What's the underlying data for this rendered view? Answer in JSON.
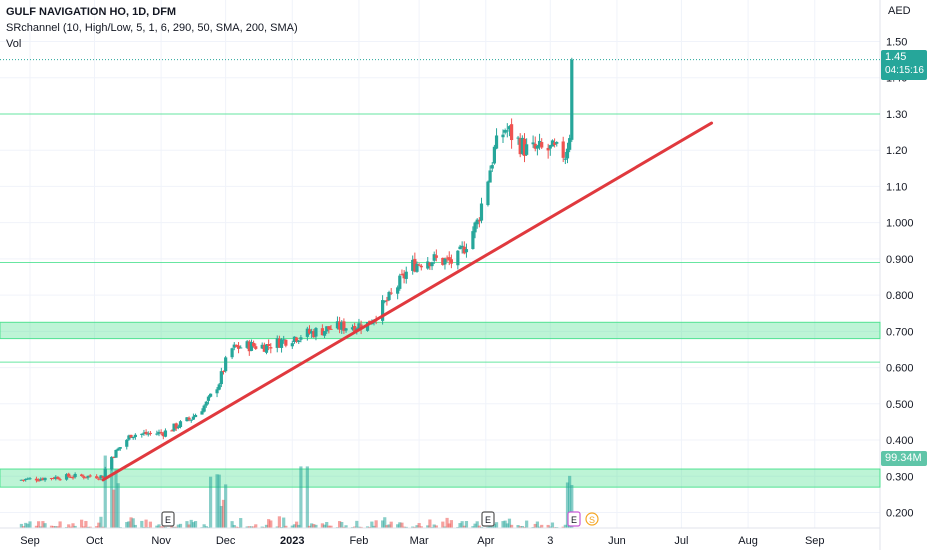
{
  "header": {
    "symbol_line": "GULF NAVIGATION HO, 1D, DFM",
    "indicator_line": "SRchannel (10, High/Low, 5, 1, 6, 290, 50, SMA, 200, SMA)",
    "volume_line": "Vol"
  },
  "price_axis": {
    "currency": "AED",
    "ticks": [
      "1.50",
      "1.40",
      "1.30",
      "1.20",
      "1.10",
      "1.000",
      "0.900",
      "0.800",
      "0.700",
      "0.600",
      "0.500",
      "0.400",
      "0.300",
      "0.200"
    ],
    "last_price": "1.45",
    "countdown": "04:15:16",
    "volume_badge": "99.34M"
  },
  "time_axis": {
    "labels": [
      "Sep",
      "Oct",
      "Nov",
      "Dec",
      "2023",
      "Feb",
      "Mar",
      "Apr",
      "3",
      "Jun",
      "Jul",
      "Aug",
      "Sep"
    ]
  },
  "events": [
    {
      "letter": "E",
      "kind": "earnings"
    },
    {
      "letter": "E",
      "kind": "earnings"
    },
    {
      "letter": "E",
      "kind": "earnings-upcoming"
    },
    {
      "letter": "S",
      "kind": "split"
    }
  ],
  "colors": {
    "up": "#26a69a",
    "down": "#ef5350",
    "channel": "#42e08a",
    "trendline": "#e0393e",
    "price_badge": "#26a69a"
  },
  "chart_data": {
    "type": "candlestick",
    "y_range": [
      0.16,
      1.54
    ],
    "channels": [
      {
        "kind": "line",
        "level": 1.3
      },
      {
        "kind": "line",
        "level": 0.89
      },
      {
        "kind": "zone",
        "low": 0.68,
        "high": 0.725
      },
      {
        "kind": "line",
        "level": 0.615
      },
      {
        "kind": "zone",
        "low": 0.27,
        "high": 0.32
      }
    ],
    "trendline": {
      "from": {
        "date": "2022-10-05",
        "price": 0.29
      },
      "to": {
        "date": "2023-07-15",
        "price": 1.275
      }
    },
    "current_price": 1.45,
    "anchors": [
      {
        "date": "2022-08-27",
        "price": 0.29
      },
      {
        "date": "2022-09-20",
        "price": 0.3
      },
      {
        "date": "2022-10-05",
        "price": 0.3
      },
      {
        "date": "2022-10-07",
        "price": 0.34
      },
      {
        "date": "2022-10-18",
        "price": 0.415
      },
      {
        "date": "2022-11-02",
        "price": 0.42
      },
      {
        "date": "2022-11-15",
        "price": 0.46
      },
      {
        "date": "2022-11-22",
        "price": 0.5
      },
      {
        "date": "2022-11-28",
        "price": 0.56
      },
      {
        "date": "2022-12-03",
        "price": 0.65
      },
      {
        "date": "2022-12-10",
        "price": 0.66
      },
      {
        "date": "2022-12-20",
        "price": 0.66
      },
      {
        "date": "2023-01-05",
        "price": 0.69
      },
      {
        "date": "2023-01-20",
        "price": 0.71
      },
      {
        "date": "2023-02-05",
        "price": 0.72
      },
      {
        "date": "2023-02-15",
        "price": 0.79
      },
      {
        "date": "2023-02-25",
        "price": 0.88
      },
      {
        "date": "2023-03-05",
        "price": 0.9
      },
      {
        "date": "2023-03-18",
        "price": 0.89
      },
      {
        "date": "2023-03-28",
        "price": 1.0
      },
      {
        "date": "2023-04-01",
        "price": 1.1
      },
      {
        "date": "2023-04-05",
        "price": 1.2
      },
      {
        "date": "2023-04-10",
        "price": 1.26
      },
      {
        "date": "2023-04-20",
        "price": 1.2
      },
      {
        "date": "2023-05-01",
        "price": 1.2
      },
      {
        "date": "2023-05-08",
        "price": 1.19
      },
      {
        "date": "2023-05-10",
        "price": 1.25
      },
      {
        "date": "2023-05-11",
        "price": 1.35
      },
      {
        "date": "2023-05-12",
        "price": 1.45
      }
    ],
    "volume_scale": [
      0,
      100
    ]
  }
}
